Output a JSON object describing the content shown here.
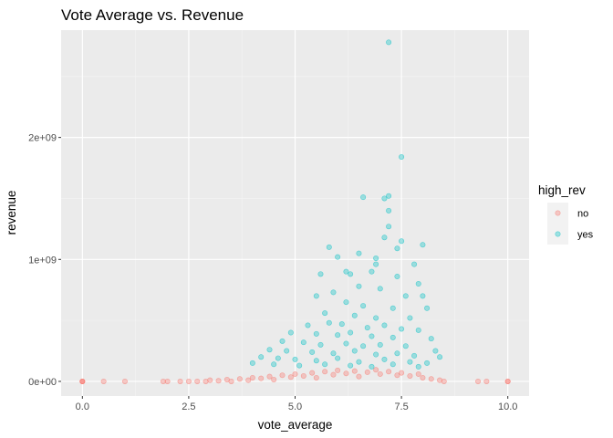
{
  "chart_data": {
    "type": "scatter",
    "title": "Vote Average vs. Revenue",
    "xlabel": "vote_average",
    "ylabel": "revenue",
    "xlim": [
      -0.5,
      10.5
    ],
    "ylim": [
      -120000000.0,
      2880000000.0
    ],
    "x_ticks": [
      {
        "value": 0,
        "label": "0.0"
      },
      {
        "value": 2.5,
        "label": "2.5"
      },
      {
        "value": 5,
        "label": "5.0"
      },
      {
        "value": 7.5,
        "label": "7.5"
      },
      {
        "value": 10,
        "label": "10.0"
      }
    ],
    "y_ticks": [
      {
        "value": 0,
        "label": "0e+00"
      },
      {
        "value": 1000000000,
        "label": "1e+09"
      },
      {
        "value": 2000000000,
        "label": "2e+09"
      }
    ],
    "grid": true,
    "legend": {
      "title": "high_rev",
      "position": "right",
      "entries": [
        {
          "label": "no",
          "color": "#F8766D"
        },
        {
          "label": "yes",
          "color": "#00BFC4"
        }
      ]
    },
    "series": [
      {
        "name": "no",
        "color": "#F8766D",
        "points": [
          [
            0,
            0
          ],
          [
            0,
            0
          ],
          [
            0,
            0
          ],
          [
            0.5,
            0
          ],
          [
            1.0,
            0
          ],
          [
            1.9,
            0
          ],
          [
            2.0,
            0
          ],
          [
            2.3,
            0
          ],
          [
            2.5,
            0
          ],
          [
            2.7,
            0
          ],
          [
            2.9,
            0
          ],
          [
            3.0,
            10000000
          ],
          [
            3.2,
            5000000
          ],
          [
            3.4,
            15000000
          ],
          [
            3.5,
            0
          ],
          [
            3.7,
            20000000
          ],
          [
            3.9,
            10000000
          ],
          [
            4.0,
            30000000
          ],
          [
            4.2,
            25000000
          ],
          [
            4.4,
            40000000
          ],
          [
            4.5,
            15000000
          ],
          [
            4.7,
            50000000
          ],
          [
            4.9,
            35000000
          ],
          [
            5.0,
            60000000
          ],
          [
            5.2,
            45000000
          ],
          [
            5.4,
            70000000
          ],
          [
            5.5,
            30000000
          ],
          [
            5.7,
            80000000
          ],
          [
            5.9,
            55000000
          ],
          [
            6.0,
            90000000
          ],
          [
            6.2,
            65000000
          ],
          [
            6.4,
            85000000
          ],
          [
            6.5,
            40000000
          ],
          [
            6.7,
            75000000
          ],
          [
            6.9,
            95000000
          ],
          [
            7.0,
            60000000
          ],
          [
            7.2,
            80000000
          ],
          [
            7.4,
            50000000
          ],
          [
            7.5,
            70000000
          ],
          [
            7.7,
            45000000
          ],
          [
            7.9,
            60000000
          ],
          [
            8.0,
            30000000
          ],
          [
            8.2,
            20000000
          ],
          [
            8.4,
            10000000
          ],
          [
            8.5,
            0
          ],
          [
            9.3,
            0
          ],
          [
            9.5,
            0
          ],
          [
            10.0,
            0
          ],
          [
            10.0,
            0
          ]
        ]
      },
      {
        "name": "yes",
        "color": "#00BFC4",
        "points": [
          [
            7.2,
            2780000000
          ],
          [
            7.5,
            1840000000
          ],
          [
            6.6,
            1510000000
          ],
          [
            7.1,
            1500000000
          ],
          [
            7.2,
            1520000000
          ],
          [
            7.2,
            1400000000
          ],
          [
            7.2,
            1270000000
          ],
          [
            7.1,
            1180000000
          ],
          [
            7.5,
            1150000000
          ],
          [
            5.8,
            1100000000
          ],
          [
            7.4,
            1090000000
          ],
          [
            6.5,
            1050000000
          ],
          [
            6.0,
            1020000000
          ],
          [
            6.9,
            1010000000
          ],
          [
            8.0,
            1120000000
          ],
          [
            6.9,
            960000000
          ],
          [
            6.2,
            900000000
          ],
          [
            6.3,
            880000000
          ],
          [
            5.6,
            880000000
          ],
          [
            7.4,
            860000000
          ],
          [
            7.8,
            960000000
          ],
          [
            6.8,
            900000000
          ],
          [
            7.9,
            800000000
          ],
          [
            5.5,
            700000000
          ],
          [
            5.9,
            730000000
          ],
          [
            6.5,
            780000000
          ],
          [
            7.0,
            760000000
          ],
          [
            7.6,
            700000000
          ],
          [
            8.0,
            700000000
          ],
          [
            6.2,
            650000000
          ],
          [
            6.6,
            620000000
          ],
          [
            7.3,
            600000000
          ],
          [
            5.7,
            560000000
          ],
          [
            6.4,
            540000000
          ],
          [
            6.9,
            520000000
          ],
          [
            7.7,
            520000000
          ],
          [
            8.1,
            600000000
          ],
          [
            5.3,
            460000000
          ],
          [
            5.8,
            480000000
          ],
          [
            6.1,
            470000000
          ],
          [
            6.7,
            440000000
          ],
          [
            7.1,
            460000000
          ],
          [
            7.5,
            430000000
          ],
          [
            7.9,
            420000000
          ],
          [
            4.9,
            400000000
          ],
          [
            5.5,
            390000000
          ],
          [
            6.0,
            380000000
          ],
          [
            6.3,
            400000000
          ],
          [
            6.8,
            370000000
          ],
          [
            7.3,
            360000000
          ],
          [
            8.2,
            350000000
          ],
          [
            4.7,
            330000000
          ],
          [
            5.2,
            320000000
          ],
          [
            5.6,
            300000000
          ],
          [
            6.2,
            310000000
          ],
          [
            6.6,
            290000000
          ],
          [
            7.0,
            300000000
          ],
          [
            7.6,
            290000000
          ],
          [
            8.3,
            250000000
          ],
          [
            4.4,
            260000000
          ],
          [
            4.8,
            250000000
          ],
          [
            5.4,
            240000000
          ],
          [
            5.9,
            230000000
          ],
          [
            6.4,
            250000000
          ],
          [
            6.9,
            220000000
          ],
          [
            7.4,
            230000000
          ],
          [
            7.8,
            210000000
          ],
          [
            8.4,
            200000000
          ],
          [
            4.2,
            200000000
          ],
          [
            4.6,
            190000000
          ],
          [
            5.0,
            180000000
          ],
          [
            5.5,
            170000000
          ],
          [
            6.0,
            190000000
          ],
          [
            6.5,
            160000000
          ],
          [
            7.1,
            180000000
          ],
          [
            7.7,
            160000000
          ],
          [
            8.1,
            150000000
          ],
          [
            4.0,
            150000000
          ],
          [
            4.5,
            140000000
          ],
          [
            5.1,
            130000000
          ],
          [
            5.7,
            140000000
          ],
          [
            6.3,
            130000000
          ],
          [
            6.8,
            120000000
          ],
          [
            7.3,
            140000000
          ],
          [
            7.9,
            120000000
          ]
        ]
      }
    ]
  }
}
